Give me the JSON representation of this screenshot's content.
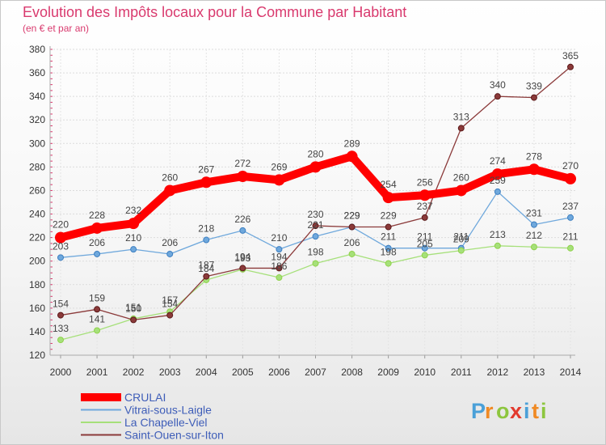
{
  "chart_data": {
    "type": "line",
    "title": "Evolution des Impôts locaux pour la Commune par Habitant",
    "subtitle": "(en € et par an)",
    "xlabel": "",
    "ylabel": "",
    "ylim": [
      120,
      380
    ],
    "yticks": [
      120,
      140,
      160,
      180,
      200,
      220,
      240,
      260,
      280,
      300,
      320,
      340,
      360,
      380
    ],
    "x": [
      "2000",
      "2001",
      "2002",
      "2003",
      "2004",
      "2005",
      "2006",
      "2007",
      "2008",
      "2009",
      "2010",
      "2011",
      "2012",
      "2013",
      "2014"
    ],
    "grid": true,
    "legend": "bottom-left",
    "series": [
      {
        "name": "CRULAI",
        "color": "#ff0000",
        "marker_color": "#ff0000",
        "values": [
          220,
          228,
          232,
          260,
          267,
          272,
          269,
          280,
          289,
          254,
          256,
          260,
          274,
          278,
          270
        ]
      },
      {
        "name": "Vitrai-sous-Laigle",
        "color": "#6fa8dc",
        "marker_color": "#3d7fc1",
        "values": [
          203,
          206,
          210,
          206,
          218,
          226,
          210,
          221,
          229,
          211,
          211,
          211,
          259,
          231,
          237
        ]
      },
      {
        "name": "La Chapelle-Viel",
        "color": "#a6e07a",
        "marker_color": "#8fd24a",
        "values": [
          133,
          141,
          151,
          157,
          184,
          193,
          186,
          198,
          206,
          198,
          205,
          209,
          213,
          212,
          211
        ]
      },
      {
        "name": "Saint-Ouen-sur-Iton",
        "color": "#8b3a3a",
        "marker_color": "#5c1a1a",
        "values": [
          154,
          159,
          150,
          154,
          187,
          194,
          194,
          230,
          229,
          229,
          237,
          313,
          340,
          339,
          365
        ]
      }
    ]
  },
  "logo": {
    "letters": [
      "P",
      "r",
      "o",
      "x",
      "i",
      "t",
      "i"
    ]
  }
}
